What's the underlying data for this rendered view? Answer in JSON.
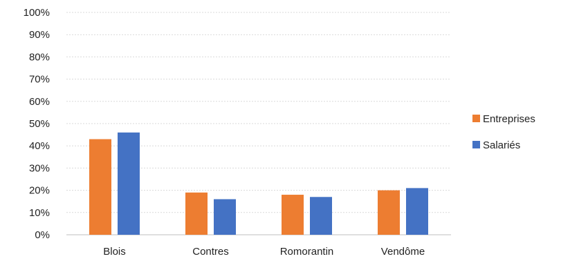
{
  "chart_data": {
    "type": "bar",
    "title": "",
    "xlabel": "",
    "ylabel": "",
    "ylim": [
      0,
      100
    ],
    "y_tick_step": 10,
    "y_tick_format": "percent",
    "grid": true,
    "legend_position": "right",
    "categories": [
      "Blois",
      "Contres",
      "Romorantin",
      "Vendôme"
    ],
    "series": [
      {
        "name": "Entreprises",
        "color": "#ED7D31",
        "values": [
          43,
          19,
          18,
          20
        ]
      },
      {
        "name": "Salariés",
        "color": "#4472C4",
        "values": [
          46,
          16,
          17,
          21
        ]
      }
    ]
  }
}
